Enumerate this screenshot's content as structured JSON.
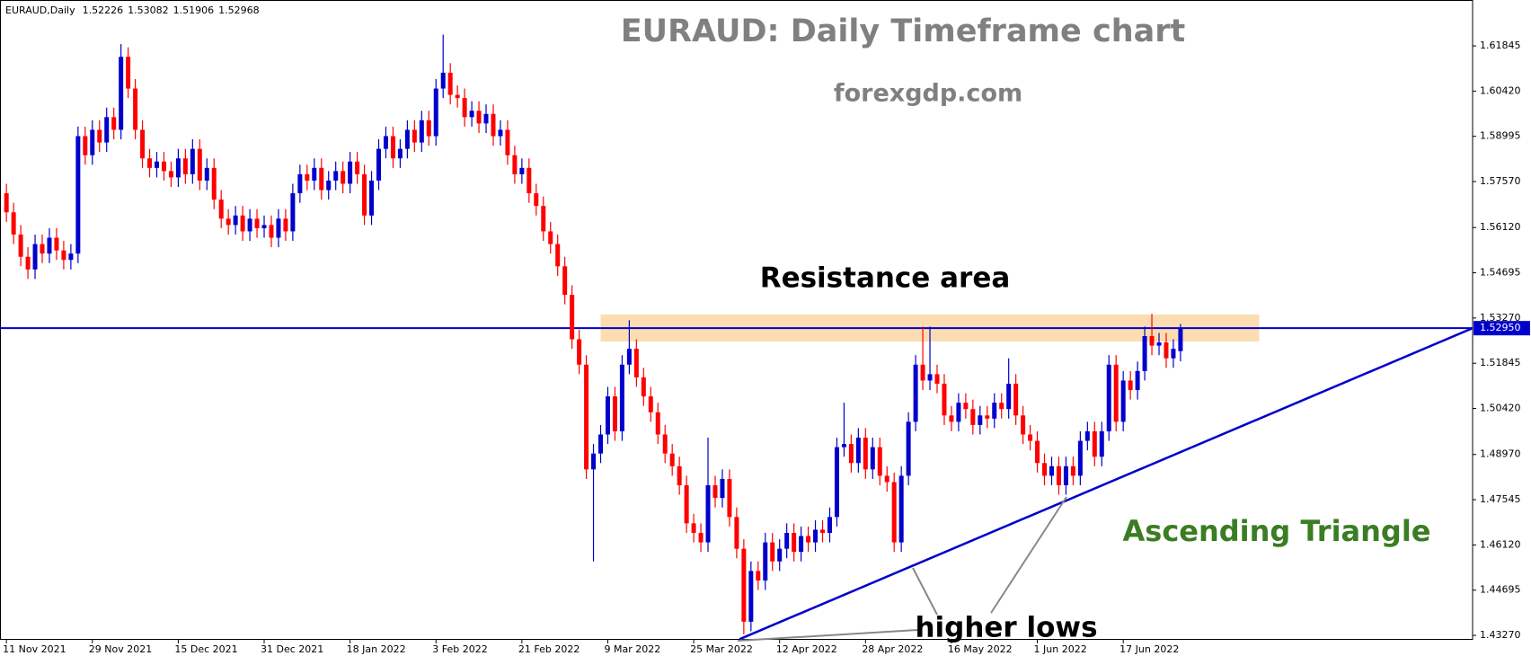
{
  "chart_data": {
    "type": "candlestick",
    "symbol": "EURAUD,Daily",
    "title": "EURAUD: Daily Timeframe chart",
    "subtitle": "forexgdp.com",
    "annotations": {
      "resistance": "Resistance area",
      "pattern": "Ascending Triangle",
      "lows": "higher lows"
    },
    "up_color": "#0000cc",
    "down_color": "#ff0000",
    "ylim": [
      1.4313,
      1.6329
    ],
    "yticks": [
      1.61845,
      {
        "value": 1.6042,
        "label": "1.60420"
      },
      1.58995,
      {
        "value": 1.5757,
        "label": "1.57570"
      },
      {
        "value": 1.5612,
        "label": "1.56120"
      },
      1.54695,
      {
        "value": 1.5327,
        "label": "1.53270"
      },
      1.51845,
      {
        "value": 1.5042,
        "label": "1.50420"
      },
      {
        "value": 1.4897,
        "label": "1.48970"
      },
      1.47545,
      {
        "value": 1.4612,
        "label": "1.46120"
      },
      1.44695,
      {
        "value": 1.4327,
        "label": "1.43270"
      }
    ],
    "xlim": [
      -0.9,
      204.8
    ],
    "xticks": [
      {
        "value": 0,
        "label": "11 Nov 2021"
      },
      {
        "value": 12,
        "label": "29 Nov 2021"
      },
      {
        "value": 24,
        "label": "15 Dec 2021"
      },
      {
        "value": 36,
        "label": "31 Dec 2021"
      },
      {
        "value": 48,
        "label": "18 Jan 2022"
      },
      {
        "value": 60,
        "label": "3 Feb 2022"
      },
      {
        "value": 72,
        "label": "21 Feb 2022"
      },
      {
        "value": 84,
        "label": "9 Mar 2022"
      },
      {
        "value": 96,
        "label": "25 Mar 2022"
      },
      {
        "value": 108,
        "label": "12 Apr 2022"
      },
      {
        "value": 120,
        "label": "28 Apr 2022"
      },
      {
        "value": 132,
        "label": "16 May 2022"
      },
      {
        "value": 144,
        "label": "1 Jun 2022"
      },
      {
        "value": 156,
        "label": "17 Jun 2022"
      }
    ],
    "current_price": {
      "value": 1.5295,
      "label": "1.52950",
      "color": "#0000cc"
    },
    "resistance_zone": {
      "low": 1.5253,
      "high": 1.5338,
      "x": [
        83,
        175
      ],
      "color": "#fcd9a8"
    },
    "trendline": {
      "x": [
        102.4,
        204.8
      ],
      "y": [
        1.4315,
        1.5295
      ],
      "color": "#0000cc"
    },
    "pattern_color": "#3a7d22",
    "ohlc": [
      [
        1.572,
        1.575,
        1.563,
        1.566
      ],
      [
        1.566,
        1.569,
        1.556,
        1.559
      ],
      [
        1.559,
        1.562,
        1.549,
        1.552
      ],
      [
        1.552,
        1.555,
        1.545,
        1.548
      ],
      [
        1.548,
        1.559,
        1.545,
        1.556
      ],
      [
        1.556,
        1.559,
        1.55,
        1.553
      ],
      [
        1.553,
        1.561,
        1.55,
        1.558
      ],
      [
        1.558,
        1.561,
        1.551,
        1.554
      ],
      [
        1.554,
        1.557,
        1.548,
        1.551
      ],
      [
        1.551,
        1.556,
        1.548,
        1.553
      ],
      [
        1.553,
        1.593,
        1.55,
        1.59
      ],
      [
        1.59,
        1.593,
        1.581,
        1.584
      ],
      [
        1.584,
        1.595,
        1.581,
        1.592
      ],
      [
        1.592,
        1.595,
        1.585,
        1.588
      ],
      [
        1.588,
        1.599,
        1.585,
        1.596
      ],
      [
        1.596,
        1.599,
        1.589,
        1.592
      ],
      [
        1.592,
        1.619,
        1.589,
        1.615
      ],
      [
        1.615,
        1.618,
        1.602,
        1.605
      ],
      [
        1.605,
        1.608,
        1.589,
        1.592
      ],
      [
        1.592,
        1.595,
        1.58,
        1.583
      ],
      [
        1.583,
        1.586,
        1.577,
        1.58
      ],
      [
        1.58,
        1.585,
        1.577,
        1.582
      ],
      [
        1.582,
        1.585,
        1.576,
        1.579
      ],
      [
        1.579,
        1.582,
        1.574,
        1.577
      ],
      [
        1.577,
        1.586,
        1.574,
        1.583
      ],
      [
        1.583,
        1.586,
        1.575,
        1.578
      ],
      [
        1.578,
        1.589,
        1.575,
        1.586
      ],
      [
        1.586,
        1.589,
        1.573,
        1.576
      ],
      [
        1.576,
        1.583,
        1.573,
        1.58
      ],
      [
        1.58,
        1.583,
        1.567,
        1.57
      ],
      [
        1.57,
        1.573,
        1.561,
        1.564
      ],
      [
        1.564,
        1.567,
        1.559,
        1.562
      ],
      [
        1.562,
        1.568,
        1.559,
        1.565
      ],
      [
        1.565,
        1.568,
        1.557,
        1.56
      ],
      [
        1.56,
        1.567,
        1.557,
        1.564
      ],
      [
        1.564,
        1.567,
        1.558,
        1.561
      ],
      [
        1.561,
        1.565,
        1.558,
        1.562
      ],
      [
        1.562,
        1.565,
        1.555,
        1.558
      ],
      [
        1.558,
        1.567,
        1.555,
        1.564
      ],
      [
        1.564,
        1.567,
        1.557,
        1.56
      ],
      [
        1.56,
        1.575,
        1.557,
        1.572
      ],
      [
        1.572,
        1.581,
        1.569,
        1.578
      ],
      [
        1.578,
        1.581,
        1.573,
        1.576
      ],
      [
        1.576,
        1.583,
        1.573,
        1.58
      ],
      [
        1.58,
        1.583,
        1.57,
        1.573
      ],
      [
        1.573,
        1.579,
        1.57,
        1.576
      ],
      [
        1.576,
        1.582,
        1.573,
        1.579
      ],
      [
        1.579,
        1.582,
        1.572,
        1.575
      ],
      [
        1.575,
        1.585,
        1.572,
        1.582
      ],
      [
        1.582,
        1.585,
        1.575,
        1.578
      ],
      [
        1.578,
        1.581,
        1.562,
        1.565
      ],
      [
        1.565,
        1.579,
        1.562,
        1.576
      ],
      [
        1.576,
        1.589,
        1.573,
        1.586
      ],
      [
        1.586,
        1.593,
        1.583,
        1.59
      ],
      [
        1.59,
        1.593,
        1.58,
        1.583
      ],
      [
        1.583,
        1.589,
        1.58,
        1.586
      ],
      [
        1.586,
        1.595,
        1.583,
        1.592
      ],
      [
        1.592,
        1.595,
        1.585,
        1.588
      ],
      [
        1.588,
        1.598,
        1.585,
        1.595
      ],
      [
        1.595,
        1.598,
        1.587,
        1.59
      ],
      [
        1.59,
        1.608,
        1.587,
        1.605
      ],
      [
        1.605,
        1.622,
        1.602,
        1.61
      ],
      [
        1.61,
        1.613,
        1.6,
        1.603
      ],
      [
        1.603,
        1.606,
        1.599,
        1.602
      ],
      [
        1.602,
        1.605,
        1.593,
        1.596
      ],
      [
        1.596,
        1.601,
        1.593,
        1.598
      ],
      [
        1.598,
        1.601,
        1.591,
        1.594
      ],
      [
        1.594,
        1.6,
        1.591,
        1.597
      ],
      [
        1.597,
        1.6,
        1.587,
        1.59
      ],
      [
        1.59,
        1.595,
        1.587,
        1.592
      ],
      [
        1.592,
        1.595,
        1.581,
        1.584
      ],
      [
        1.584,
        1.587,
        1.575,
        1.578
      ],
      [
        1.578,
        1.583,
        1.575,
        1.58
      ],
      [
        1.58,
        1.583,
        1.569,
        1.572
      ],
      [
        1.572,
        1.575,
        1.565,
        1.568
      ],
      [
        1.568,
        1.571,
        1.557,
        1.56
      ],
      [
        1.56,
        1.563,
        1.553,
        1.556
      ],
      [
        1.556,
        1.559,
        1.546,
        1.549
      ],
      [
        1.549,
        1.552,
        1.537,
        1.54
      ],
      [
        1.54,
        1.543,
        1.523,
        1.526
      ],
      [
        1.526,
        1.529,
        1.515,
        1.518
      ],
      [
        1.518,
        1.521,
        1.482,
        1.485
      ],
      [
        1.485,
        1.493,
        1.456,
        1.49
      ],
      [
        1.49,
        1.499,
        1.487,
        1.496
      ],
      [
        1.496,
        1.511,
        1.493,
        1.508
      ],
      [
        1.508,
        1.511,
        1.494,
        1.497
      ],
      [
        1.497,
        1.521,
        1.494,
        1.518
      ],
      [
        1.518,
        1.532,
        1.515,
        1.523
      ],
      [
        1.523,
        1.526,
        1.511,
        1.514
      ],
      [
        1.514,
        1.517,
        1.505,
        1.508
      ],
      [
        1.508,
        1.511,
        1.5,
        1.503
      ],
      [
        1.503,
        1.506,
        1.493,
        1.496
      ],
      [
        1.496,
        1.499,
        1.487,
        1.49
      ],
      [
        1.49,
        1.493,
        1.483,
        1.486
      ],
      [
        1.486,
        1.489,
        1.477,
        1.48
      ],
      [
        1.48,
        1.483,
        1.465,
        1.468
      ],
      [
        1.468,
        1.471,
        1.462,
        1.465
      ],
      [
        1.465,
        1.468,
        1.459,
        1.462
      ],
      [
        1.462,
        1.495,
        1.459,
        1.48
      ],
      [
        1.48,
        1.483,
        1.473,
        1.476
      ],
      [
        1.476,
        1.485,
        1.473,
        1.482
      ],
      [
        1.482,
        1.485,
        1.467,
        1.47
      ],
      [
        1.47,
        1.473,
        1.457,
        1.46
      ],
      [
        1.46,
        1.463,
        1.433,
        1.437
      ],
      [
        1.437,
        1.456,
        1.434,
        1.453
      ],
      [
        1.453,
        1.456,
        1.447,
        1.45
      ],
      [
        1.45,
        1.465,
        1.447,
        1.462
      ],
      [
        1.462,
        1.465,
        1.453,
        1.456
      ],
      [
        1.456,
        1.463,
        1.453,
        1.46
      ],
      [
        1.46,
        1.468,
        1.457,
        1.465
      ],
      [
        1.465,
        1.468,
        1.456,
        1.459
      ],
      [
        1.459,
        1.467,
        1.456,
        1.464
      ],
      [
        1.464,
        1.467,
        1.459,
        1.462
      ],
      [
        1.462,
        1.469,
        1.459,
        1.466
      ],
      [
        1.466,
        1.469,
        1.462,
        1.465
      ],
      [
        1.465,
        1.473,
        1.462,
        1.47
      ],
      [
        1.47,
        1.495,
        1.467,
        1.492
      ],
      [
        1.492,
        1.506,
        1.489,
        1.493
      ],
      [
        1.493,
        1.496,
        1.484,
        1.487
      ],
      [
        1.487,
        1.498,
        1.484,
        1.495
      ],
      [
        1.495,
        1.498,
        1.482,
        1.485
      ],
      [
        1.485,
        1.495,
        1.482,
        1.492
      ],
      [
        1.492,
        1.495,
        1.48,
        1.483
      ],
      [
        1.483,
        1.486,
        1.478,
        1.481
      ],
      [
        1.481,
        1.484,
        1.459,
        1.462
      ],
      [
        1.462,
        1.486,
        1.459,
        1.483
      ],
      [
        1.483,
        1.503,
        1.48,
        1.5
      ],
      [
        1.5,
        1.521,
        1.497,
        1.518
      ],
      [
        1.518,
        1.53,
        1.51,
        1.513
      ],
      [
        1.513,
        1.53,
        1.51,
        1.515
      ],
      [
        1.515,
        1.518,
        1.509,
        1.512
      ],
      [
        1.512,
        1.515,
        1.499,
        1.502
      ],
      [
        1.502,
        1.505,
        1.497,
        1.5
      ],
      [
        1.5,
        1.509,
        1.497,
        1.506
      ],
      [
        1.506,
        1.509,
        1.501,
        1.504
      ],
      [
        1.504,
        1.507,
        1.496,
        1.499
      ],
      [
        1.499,
        1.505,
        1.496,
        1.502
      ],
      [
        1.502,
        1.505,
        1.498,
        1.501
      ],
      [
        1.501,
        1.509,
        1.498,
        1.506
      ],
      [
        1.506,
        1.509,
        1.501,
        1.504
      ],
      [
        1.504,
        1.52,
        1.501,
        1.512
      ],
      [
        1.512,
        1.515,
        1.499,
        1.502
      ],
      [
        1.502,
        1.505,
        1.493,
        1.496
      ],
      [
        1.496,
        1.499,
        1.491,
        1.494
      ],
      [
        1.494,
        1.497,
        1.484,
        1.487
      ],
      [
        1.487,
        1.49,
        1.48,
        1.483
      ],
      [
        1.483,
        1.489,
        1.48,
        1.486
      ],
      [
        1.486,
        1.489,
        1.477,
        1.48
      ],
      [
        1.48,
        1.489,
        1.477,
        1.486
      ],
      [
        1.486,
        1.489,
        1.48,
        1.483
      ],
      [
        1.483,
        1.497,
        1.48,
        1.494
      ],
      [
        1.494,
        1.5,
        1.491,
        1.497
      ],
      [
        1.497,
        1.5,
        1.486,
        1.489
      ],
      [
        1.489,
        1.5,
        1.486,
        1.497
      ],
      [
        1.497,
        1.521,
        1.494,
        1.518
      ],
      [
        1.518,
        1.521,
        1.497,
        1.5
      ],
      [
        1.5,
        1.516,
        1.497,
        1.513
      ],
      [
        1.513,
        1.516,
        1.507,
        1.51
      ],
      [
        1.51,
        1.519,
        1.507,
        1.516
      ],
      [
        1.516,
        1.53,
        1.513,
        1.527
      ],
      [
        1.527,
        1.534,
        1.521,
        1.524
      ],
      [
        1.524,
        1.528,
        1.521,
        1.525
      ],
      [
        1.525,
        1.528,
        1.517,
        1.52
      ],
      [
        1.52,
        1.526,
        1.517,
        1.523
      ],
      [
        1.52226,
        1.53082,
        1.51906,
        1.52968
      ]
    ]
  }
}
